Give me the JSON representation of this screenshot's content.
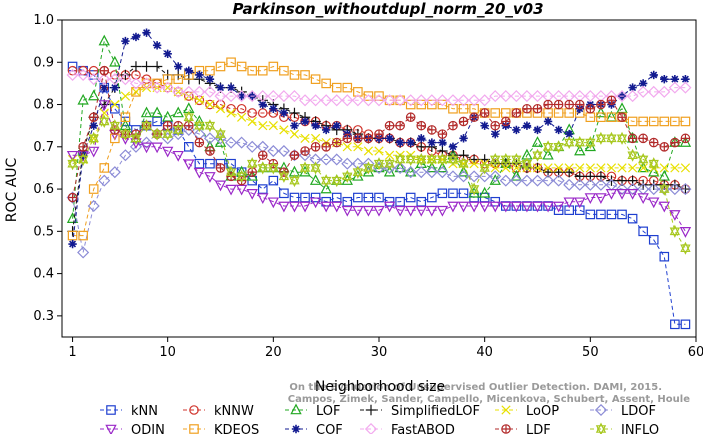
{
  "chart_data": {
    "type": "line",
    "title": "Parkinson_withoutdupl_norm_20_v03",
    "xlabel": "Neighborhood size",
    "ylabel": "ROC AUC",
    "xlim": [
      0,
      60
    ],
    "ylim": [
      0.25,
      1.0
    ],
    "xticks": [
      1,
      10,
      20,
      30,
      40,
      50,
      60
    ],
    "yticks": [
      0.3,
      0.4,
      0.5,
      0.6,
      0.7,
      0.8,
      0.9,
      1.0
    ],
    "grid": false,
    "legend_position": "bottom",
    "watermark": [
      "Campos, Zimek, Sander, Campello, Micenkova, Schubert, Assent, Houle",
      "On the Evaluation of Unsupervised Outlier Detection. DAMI, 2015."
    ],
    "x": [
      1,
      2,
      3,
      4,
      5,
      6,
      7,
      8,
      9,
      10,
      11,
      12,
      13,
      14,
      15,
      16,
      17,
      18,
      19,
      20,
      21,
      22,
      23,
      24,
      25,
      26,
      27,
      28,
      29,
      30,
      31,
      32,
      33,
      34,
      35,
      36,
      37,
      38,
      39,
      40,
      41,
      42,
      43,
      44,
      45,
      46,
      47,
      48,
      49,
      50,
      51,
      52,
      53,
      54,
      55,
      56,
      57,
      58,
      59
    ],
    "series": [
      {
        "name": "kNN",
        "color": "#1f3fd0",
        "marker": "square",
        "values": [
          0.89,
          0.88,
          0.87,
          0.84,
          0.79,
          0.76,
          0.74,
          0.75,
          0.76,
          0.75,
          0.74,
          0.7,
          0.66,
          0.66,
          0.66,
          0.66,
          0.64,
          0.62,
          0.6,
          0.62,
          0.59,
          0.58,
          0.58,
          0.58,
          0.57,
          0.58,
          0.57,
          0.58,
          0.58,
          0.58,
          0.57,
          0.57,
          0.58,
          0.57,
          0.58,
          0.59,
          0.59,
          0.59,
          0.58,
          0.58,
          0.57,
          0.56,
          0.56,
          0.56,
          0.56,
          0.56,
          0.55,
          0.55,
          0.55,
          0.54,
          0.54,
          0.54,
          0.54,
          0.53,
          0.5,
          0.48,
          0.44,
          0.28,
          0.28
        ]
      },
      {
        "name": "kNNW",
        "color": "#d0342c",
        "marker": "circle",
        "values": [
          0.88,
          0.88,
          0.88,
          0.88,
          0.87,
          0.87,
          0.87,
          0.86,
          0.85,
          0.84,
          0.83,
          0.82,
          0.81,
          0.8,
          0.8,
          0.79,
          0.79,
          0.78,
          0.78,
          0.78,
          0.77,
          0.77,
          0.76,
          0.76,
          0.75,
          0.75,
          0.74,
          0.74,
          0.73,
          0.72,
          0.72,
          0.71,
          0.71,
          0.7,
          0.69,
          0.68,
          0.68,
          0.67,
          0.67,
          0.66,
          0.66,
          0.66,
          0.65,
          0.65,
          0.65,
          0.64,
          0.64,
          0.64,
          0.63,
          0.63,
          0.63,
          0.63,
          0.62,
          0.62,
          0.62,
          0.62,
          0.61,
          0.61,
          0.6
        ]
      },
      {
        "name": "LOF",
        "color": "#22a822",
        "marker": "triangle-up",
        "values": [
          0.53,
          0.81,
          0.82,
          0.95,
          0.9,
          0.75,
          0.72,
          0.78,
          0.78,
          0.77,
          0.78,
          0.79,
          0.76,
          0.7,
          0.71,
          0.63,
          0.64,
          0.63,
          0.65,
          0.65,
          0.65,
          0.64,
          0.64,
          0.62,
          0.6,
          0.62,
          0.62,
          0.63,
          0.64,
          0.65,
          0.64,
          0.65,
          0.64,
          0.66,
          0.65,
          0.65,
          0.68,
          0.64,
          0.59,
          0.59,
          0.62,
          0.66,
          0.63,
          0.68,
          0.71,
          0.68,
          0.7,
          0.74,
          0.69,
          0.7,
          0.78,
          0.77,
          0.79,
          0.72,
          0.65,
          0.64,
          0.63,
          0.71,
          0.71
        ]
      },
      {
        "name": "SimplifiedLOF",
        "color": "#111111",
        "marker": "plus",
        "values": [
          0.5,
          0.69,
          0.77,
          0.8,
          0.84,
          0.87,
          0.89,
          0.89,
          0.89,
          0.87,
          0.87,
          0.86,
          0.86,
          0.85,
          0.84,
          0.84,
          0.83,
          0.82,
          0.81,
          0.8,
          0.79,
          0.78,
          0.77,
          0.76,
          0.75,
          0.74,
          0.74,
          0.73,
          0.72,
          0.72,
          0.72,
          0.71,
          0.71,
          0.7,
          0.7,
          0.69,
          0.68,
          0.68,
          0.67,
          0.67,
          0.66,
          0.66,
          0.66,
          0.65,
          0.65,
          0.64,
          0.64,
          0.64,
          0.63,
          0.63,
          0.63,
          0.62,
          0.62,
          0.62,
          0.61,
          0.61,
          0.61,
          0.61,
          0.6
        ]
      },
      {
        "name": "LoOP",
        "color": "#e8e000",
        "marker": "x",
        "values": [
          0.67,
          0.67,
          0.72,
          0.78,
          0.8,
          0.82,
          0.83,
          0.84,
          0.84,
          0.84,
          0.83,
          0.82,
          0.81,
          0.8,
          0.79,
          0.78,
          0.77,
          0.76,
          0.75,
          0.75,
          0.74,
          0.73,
          0.72,
          0.72,
          0.71,
          0.71,
          0.7,
          0.7,
          0.69,
          0.69,
          0.68,
          0.68,
          0.68,
          0.67,
          0.67,
          0.67,
          0.66,
          0.66,
          0.66,
          0.66,
          0.65,
          0.65,
          0.65,
          0.65,
          0.65,
          0.65,
          0.65,
          0.65,
          0.65,
          0.65,
          0.65,
          0.65,
          0.65,
          0.65,
          0.65,
          0.65,
          0.65,
          0.65,
          0.65
        ]
      },
      {
        "name": "LDOF",
        "color": "#8c8cd6",
        "marker": "diamond",
        "values": [
          0.58,
          0.45,
          0.56,
          0.62,
          0.64,
          0.68,
          0.7,
          0.71,
          0.73,
          0.72,
          0.73,
          0.74,
          0.73,
          0.72,
          0.72,
          0.71,
          0.71,
          0.7,
          0.7,
          0.69,
          0.69,
          0.68,
          0.68,
          0.67,
          0.67,
          0.67,
          0.66,
          0.66,
          0.66,
          0.65,
          0.65,
          0.65,
          0.64,
          0.64,
          0.64,
          0.64,
          0.63,
          0.63,
          0.63,
          0.63,
          0.63,
          0.62,
          0.62,
          0.62,
          0.62,
          0.62,
          0.62,
          0.61,
          0.61,
          0.61,
          0.61,
          0.61,
          0.6,
          0.6,
          0.6,
          0.6,
          0.6,
          0.6,
          0.6
        ]
      },
      {
        "name": "ODIN",
        "color": "#9a28c8",
        "marker": "triangle-down",
        "values": [
          0.68,
          0.68,
          0.69,
          0.8,
          0.73,
          0.72,
          0.71,
          0.7,
          0.7,
          0.69,
          0.68,
          0.66,
          0.64,
          0.63,
          0.61,
          0.6,
          0.6,
          0.59,
          0.58,
          0.57,
          0.56,
          0.56,
          0.56,
          0.57,
          0.56,
          0.56,
          0.55,
          0.55,
          0.55,
          0.55,
          0.56,
          0.55,
          0.55,
          0.55,
          0.55,
          0.55,
          0.56,
          0.56,
          0.56,
          0.56,
          0.56,
          0.56,
          0.56,
          0.56,
          0.56,
          0.56,
          0.56,
          0.57,
          0.57,
          0.58,
          0.58,
          0.59,
          0.59,
          0.59,
          0.58,
          0.57,
          0.56,
          0.54,
          0.5
        ]
      },
      {
        "name": "KDEOS",
        "color": "#f0a020",
        "marker": "square",
        "values": [
          0.49,
          0.49,
          0.6,
          0.65,
          0.72,
          0.77,
          0.83,
          0.85,
          0.85,
          0.86,
          0.86,
          0.87,
          0.88,
          0.88,
          0.89,
          0.9,
          0.89,
          0.88,
          0.88,
          0.89,
          0.88,
          0.87,
          0.87,
          0.86,
          0.85,
          0.84,
          0.84,
          0.83,
          0.82,
          0.82,
          0.81,
          0.81,
          0.8,
          0.8,
          0.8,
          0.8,
          0.79,
          0.79,
          0.79,
          0.78,
          0.78,
          0.78,
          0.78,
          0.78,
          0.78,
          0.78,
          0.78,
          0.78,
          0.78,
          0.77,
          0.77,
          0.77,
          0.77,
          0.76,
          0.76,
          0.76,
          0.76,
          0.76,
          0.76
        ]
      },
      {
        "name": "COF",
        "color": "#121a90",
        "marker": "asterisk",
        "values": [
          0.47,
          0.68,
          0.75,
          0.84,
          0.84,
          0.95,
          0.96,
          0.97,
          0.94,
          0.92,
          0.89,
          0.88,
          0.87,
          0.86,
          0.84,
          0.84,
          0.82,
          0.82,
          0.8,
          0.79,
          0.78,
          0.75,
          0.76,
          0.75,
          0.74,
          0.75,
          0.73,
          0.72,
          0.72,
          0.72,
          0.72,
          0.71,
          0.71,
          0.72,
          0.71,
          0.71,
          0.7,
          0.72,
          0.77,
          0.75,
          0.73,
          0.75,
          0.74,
          0.75,
          0.74,
          0.76,
          0.74,
          0.73,
          0.79,
          0.8,
          0.8,
          0.8,
          0.82,
          0.84,
          0.85,
          0.87,
          0.86,
          0.86,
          0.86
        ]
      },
      {
        "name": "FastABOD",
        "color": "#f2a9ee",
        "marker": "diamond",
        "values": [
          0.87,
          0.87,
          0.86,
          0.86,
          0.86,
          0.86,
          0.85,
          0.85,
          0.84,
          0.84,
          0.83,
          0.83,
          0.83,
          0.83,
          0.82,
          0.82,
          0.82,
          0.82,
          0.82,
          0.82,
          0.82,
          0.82,
          0.81,
          0.81,
          0.81,
          0.81,
          0.81,
          0.81,
          0.81,
          0.81,
          0.81,
          0.81,
          0.81,
          0.81,
          0.81,
          0.81,
          0.81,
          0.81,
          0.81,
          0.81,
          0.82,
          0.82,
          0.82,
          0.82,
          0.82,
          0.82,
          0.82,
          0.82,
          0.82,
          0.82,
          0.82,
          0.82,
          0.82,
          0.82,
          0.83,
          0.83,
          0.83,
          0.84,
          0.84
        ]
      },
      {
        "name": "LDF",
        "color": "#b22a2a",
        "marker": "circle-plus",
        "values": [
          0.58,
          0.7,
          0.77,
          0.88,
          0.74,
          0.73,
          0.73,
          0.75,
          0.73,
          0.75,
          0.75,
          0.75,
          0.71,
          0.69,
          0.65,
          0.63,
          0.62,
          0.64,
          0.68,
          0.66,
          0.64,
          0.68,
          0.69,
          0.7,
          0.7,
          0.71,
          0.72,
          0.72,
          0.72,
          0.73,
          0.75,
          0.75,
          0.77,
          0.75,
          0.74,
          0.73,
          0.75,
          0.76,
          0.77,
          0.78,
          0.75,
          0.76,
          0.78,
          0.79,
          0.79,
          0.8,
          0.8,
          0.8,
          0.8,
          0.79,
          0.8,
          0.81,
          0.77,
          0.72,
          0.72,
          0.71,
          0.7,
          0.71,
          0.72
        ]
      },
      {
        "name": "INFLO",
        "color": "#a8c820",
        "marker": "star",
        "values": [
          0.66,
          0.67,
          0.72,
          0.76,
          0.75,
          0.73,
          0.72,
          0.75,
          0.73,
          0.73,
          0.74,
          0.77,
          0.75,
          0.75,
          0.73,
          0.64,
          0.63,
          0.66,
          0.65,
          0.65,
          0.63,
          0.62,
          0.65,
          0.65,
          0.62,
          0.62,
          0.63,
          0.64,
          0.65,
          0.66,
          0.66,
          0.67,
          0.67,
          0.67,
          0.67,
          0.67,
          0.67,
          0.66,
          0.6,
          0.65,
          0.67,
          0.67,
          0.67,
          0.66,
          0.68,
          0.7,
          0.7,
          0.71,
          0.71,
          0.71,
          0.72,
          0.72,
          0.72,
          0.68,
          0.67,
          0.66,
          0.6,
          0.5,
          0.46
        ]
      }
    ]
  }
}
